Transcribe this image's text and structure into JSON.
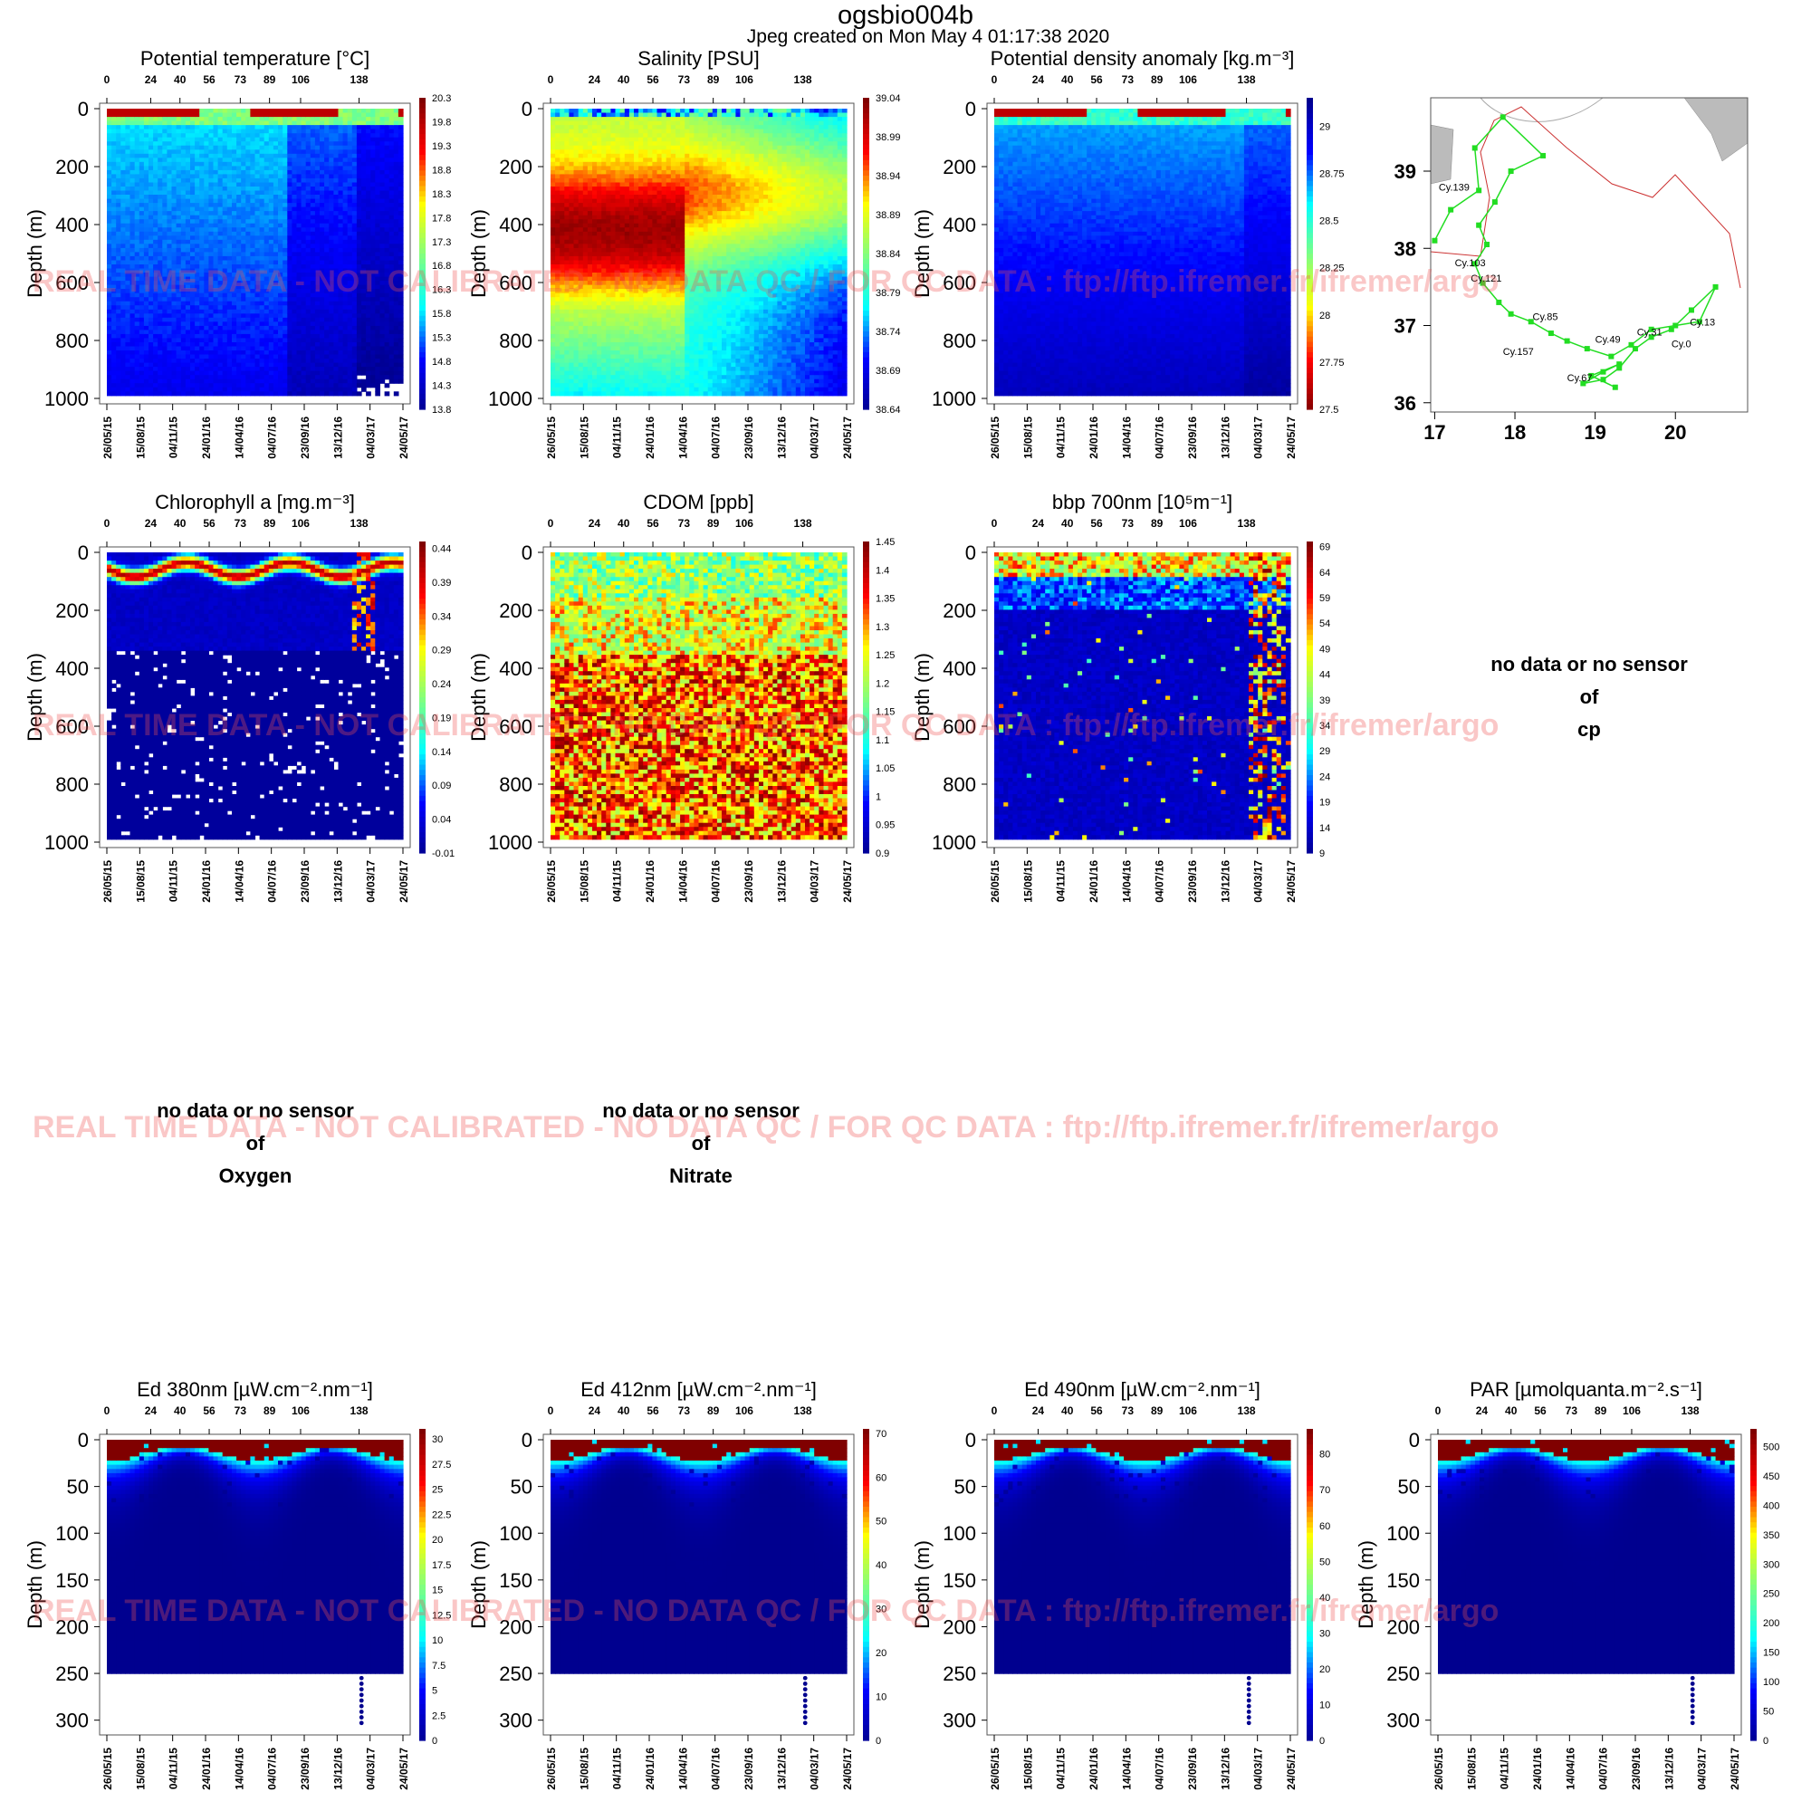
{
  "header": {
    "title": "ogsbio004b",
    "subtitle": "Jpeg created on  Mon May  4 01:17:38 2020"
  },
  "watermark": "REAL TIME DATA - NOT CALIBRATED - NO DATA QC   /  FOR QC DATA : ftp://ftp.ifremer.fr/ifremer/argo",
  "shared_axes": {
    "cycle_ticks": [
      "0",
      "24",
      "40",
      "56",
      "73",
      "89",
      "106",
      "138"
    ],
    "date_ticks": [
      "26/05/15",
      "15/08/15",
      "04/11/15",
      "24/01/16",
      "14/04/16",
      "04/07/16",
      "23/09/16",
      "13/12/16",
      "04/03/17",
      "24/05/17"
    ],
    "ylabel": "Depth (m)"
  },
  "nodata_panels": [
    {
      "line1": "no data or no sensor",
      "line2": "of",
      "line3": "cp"
    },
    {
      "line1": "no data or no sensor",
      "line2": "of",
      "line3": "Oxygen"
    },
    {
      "line1": "no data or no sensor",
      "line2": "of",
      "line3": "Nitrate"
    }
  ],
  "chart_data": [
    {
      "type": "heatmap",
      "title": "Potential temperature [°C]",
      "variable": "temperature",
      "ylim": [
        1000,
        0
      ],
      "yticks": [
        "0",
        "200",
        "400",
        "600",
        "800",
        "1000"
      ],
      "colorbar_ticks": [
        "20.3",
        "19.8",
        "19.3",
        "18.8",
        "18.3",
        "17.8",
        "17.3",
        "16.8",
        "16.3",
        "15.8",
        "15.3",
        "14.8",
        "14.3",
        "13.8"
      ],
      "colorbar_range": [
        13.8,
        20.3
      ],
      "colormap": [
        "#00008f",
        "#0000ff",
        "#00ffff",
        "#80ff80",
        "#ffff00",
        "#ff0000",
        "#800000"
      ]
    },
    {
      "type": "heatmap",
      "title": "Salinity [PSU]",
      "variable": "salinity",
      "ylim": [
        1000,
        0
      ],
      "yticks": [
        "0",
        "200",
        "400",
        "600",
        "800",
        "1000"
      ],
      "colorbar_ticks": [
        "39.04",
        "38.99",
        "38.94",
        "38.89",
        "38.84",
        "38.79",
        "38.74",
        "38.69",
        "38.64"
      ],
      "colorbar_range": [
        38.64,
        39.04
      ],
      "colormap": [
        "#00008f",
        "#0000ff",
        "#00ffff",
        "#80ff80",
        "#ffff00",
        "#ff0000",
        "#800000"
      ]
    },
    {
      "type": "heatmap",
      "title": "Potential density anomaly [kg.m⁻³]",
      "variable": "density",
      "ylim": [
        1000,
        0
      ],
      "yticks": [
        "0",
        "200",
        "400",
        "600",
        "800",
        "1000"
      ],
      "colorbar_ticks": [
        "29",
        "28.75",
        "28.5",
        "28.25",
        "28",
        "27.75",
        "27.5"
      ],
      "colorbar_range": [
        27.5,
        29.15
      ],
      "colormap": [
        "#800000",
        "#ff0000",
        "#ffff00",
        "#80ff80",
        "#00ffff",
        "#0000ff",
        "#00008f"
      ]
    },
    {
      "type": "scatter",
      "title": "",
      "variable": "map",
      "xlim": [
        16.95,
        20.9
      ],
      "ylim": [
        35.88,
        39.95
      ],
      "xticks": [
        "17",
        "18",
        "19",
        "20"
      ],
      "yticks": [
        "36",
        "37",
        "38",
        "39"
      ],
      "track_color": "#22dd22",
      "track": [
        [
          17.0,
          38.1
        ],
        [
          17.2,
          38.5
        ],
        [
          17.55,
          38.75
        ],
        [
          17.5,
          39.3
        ],
        [
          17.85,
          39.7
        ],
        [
          18.35,
          39.2
        ],
        [
          17.95,
          39.0
        ],
        [
          17.75,
          38.6
        ],
        [
          17.55,
          38.3
        ],
        [
          17.65,
          38.05
        ],
        [
          17.5,
          37.8
        ],
        [
          17.6,
          37.55
        ],
        [
          17.8,
          37.3
        ],
        [
          17.95,
          37.15
        ],
        [
          18.2,
          37.05
        ],
        [
          18.45,
          36.9
        ],
        [
          18.65,
          36.8
        ],
        [
          18.9,
          36.7
        ],
        [
          19.2,
          36.6
        ],
        [
          19.45,
          36.75
        ],
        [
          19.7,
          36.95
        ],
        [
          20.0,
          37.0
        ],
        [
          20.3,
          37.05
        ],
        [
          20.5,
          37.5
        ],
        [
          20.2,
          37.2
        ],
        [
          19.95,
          36.95
        ],
        [
          19.7,
          36.85
        ],
        [
          19.5,
          36.7
        ],
        [
          19.3,
          36.45
        ],
        [
          19.1,
          36.3
        ],
        [
          18.85,
          36.25
        ],
        [
          19.1,
          36.4
        ],
        [
          19.3,
          36.5
        ],
        [
          18.95,
          36.35
        ],
        [
          19.25,
          36.2
        ]
      ],
      "labels": [
        {
          "text": "Cy.139",
          "lon": 17.05,
          "lat": 38.75
        },
        {
          "text": "Cy.103",
          "lon": 17.25,
          "lat": 37.77
        },
        {
          "text": "Cy.121",
          "lon": 17.45,
          "lat": 37.57
        },
        {
          "text": "Cy.85",
          "lon": 18.22,
          "lat": 37.07
        },
        {
          "text": "Cy.157",
          "lon": 17.85,
          "lat": 36.62
        },
        {
          "text": "Cy.49",
          "lon": 19.0,
          "lat": 36.78
        },
        {
          "text": "Cy.31",
          "lon": 19.52,
          "lat": 36.87
        },
        {
          "text": "Cy.13",
          "lon": 20.18,
          "lat": 37.0
        },
        {
          "text": "Cy.0",
          "lon": 19.95,
          "lat": 36.72
        },
        {
          "text": "Cy.67",
          "lon": 18.65,
          "lat": 36.28
        }
      ],
      "coast_color": "#bbbbbb",
      "line_color": "#cc3333"
    },
    {
      "type": "heatmap",
      "title": "Chlorophyll a [mg.m⁻³]",
      "variable": "chla",
      "ylim": [
        1000,
        0
      ],
      "yticks": [
        "0",
        "200",
        "400",
        "600",
        "800",
        "1000"
      ],
      "colorbar_ticks": [
        "0.44",
        "0.39",
        "0.34",
        "0.29",
        "0.24",
        "0.19",
        "0.14",
        "0.09",
        "0.04",
        "-0.01"
      ],
      "colorbar_range": [
        -0.01,
        0.45
      ],
      "colormap": [
        "#00008f",
        "#0000ff",
        "#00ffff",
        "#80ff80",
        "#ffff00",
        "#ff0000",
        "#800000"
      ]
    },
    {
      "type": "heatmap",
      "title": "CDOM  [ppb]",
      "variable": "cdom",
      "ylim": [
        1000,
        0
      ],
      "yticks": [
        "0",
        "200",
        "400",
        "600",
        "800",
        "1000"
      ],
      "colorbar_ticks": [
        "1.45",
        "1.4",
        "1.35",
        "1.3",
        "1.25",
        "1.2",
        "1.15",
        "1.1",
        "1.05",
        "1",
        "0.95",
        "0.9"
      ],
      "colorbar_range": [
        0.9,
        1.45
      ],
      "colormap": [
        "#00008f",
        "#0000ff",
        "#00ffff",
        "#80ff80",
        "#ffff00",
        "#ff0000",
        "#800000"
      ]
    },
    {
      "type": "heatmap",
      "title": "bbp 700nm [10⁵m⁻¹]",
      "variable": "bbp",
      "ylim": [
        1000,
        0
      ],
      "yticks": [
        "0",
        "200",
        "400",
        "600",
        "800",
        "1000"
      ],
      "colorbar_ticks": [
        "69",
        "64",
        "59",
        "54",
        "49",
        "44",
        "39",
        "34",
        "29",
        "24",
        "19",
        "14",
        "9"
      ],
      "colorbar_range": [
        9,
        70
      ],
      "colormap": [
        "#00008f",
        "#0000ff",
        "#00ffff",
        "#80ff80",
        "#ffff00",
        "#ff0000",
        "#800000"
      ]
    },
    {
      "type": "heatmap",
      "title": "Ed 380nm [µW.cm⁻².nm⁻¹]",
      "variable": "ed",
      "ylim": [
        310,
        0
      ],
      "yticks": [
        "0",
        "50",
        "100",
        "150",
        "200",
        "250",
        "300"
      ],
      "colorbar_ticks": [
        "30",
        "27.5",
        "25",
        "22.5",
        "20",
        "17.5",
        "15",
        "12.5",
        "10",
        "7.5",
        "5",
        "2.5",
        "0"
      ],
      "colorbar_range": [
        0,
        31
      ],
      "colormap": [
        "#00008f",
        "#0000ff",
        "#00ffff",
        "#80ff80",
        "#ffff00",
        "#ff0000",
        "#800000"
      ]
    },
    {
      "type": "heatmap",
      "title": "Ed 412nm [µW.cm⁻².nm⁻¹]",
      "variable": "ed",
      "ylim": [
        310,
        0
      ],
      "yticks": [
        "0",
        "50",
        "100",
        "150",
        "200",
        "250",
        "300"
      ],
      "colorbar_ticks": [
        "70",
        "60",
        "50",
        "40",
        "30",
        "20",
        "10",
        "0"
      ],
      "colorbar_range": [
        0,
        71
      ],
      "colormap": [
        "#00008f",
        "#0000ff",
        "#00ffff",
        "#80ff80",
        "#ffff00",
        "#ff0000",
        "#800000"
      ]
    },
    {
      "type": "heatmap",
      "title": "Ed 490nm [µW.cm⁻².nm⁻¹]",
      "variable": "ed",
      "ylim": [
        310,
        0
      ],
      "yticks": [
        "0",
        "50",
        "100",
        "150",
        "200",
        "250",
        "300"
      ],
      "colorbar_ticks": [
        "80",
        "70",
        "60",
        "50",
        "40",
        "30",
        "20",
        "10",
        "0"
      ],
      "colorbar_range": [
        0,
        87
      ],
      "colormap": [
        "#00008f",
        "#0000ff",
        "#00ffff",
        "#80ff80",
        "#ffff00",
        "#ff0000",
        "#800000"
      ]
    },
    {
      "type": "heatmap",
      "title": "PAR [µmolquanta.m⁻².s⁻¹]",
      "variable": "ed",
      "ylim": [
        310,
        0
      ],
      "yticks": [
        "0",
        "50",
        "100",
        "150",
        "200",
        "250",
        "300"
      ],
      "colorbar_ticks": [
        "500",
        "450",
        "400",
        "350",
        "300",
        "250",
        "200",
        "150",
        "100",
        "50",
        "0"
      ],
      "colorbar_range": [
        0,
        530
      ],
      "colormap": [
        "#00008f",
        "#0000ff",
        "#00ffff",
        "#80ff80",
        "#ffff00",
        "#ff0000",
        "#800000"
      ]
    }
  ]
}
